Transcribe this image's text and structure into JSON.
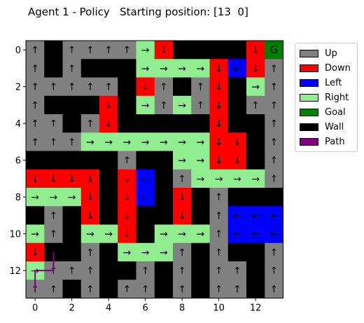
{
  "chart_data": {
    "type": "heatmap",
    "title": "Agent 1 - Policy   Starting position: [13  0]",
    "xlabel": "",
    "ylabel": "",
    "x_ticks": [
      0,
      2,
      4,
      6,
      8,
      10,
      12
    ],
    "y_ticks": [
      0,
      2,
      4,
      6,
      8,
      10,
      12
    ],
    "grid_size": [
      14,
      14
    ],
    "legend": [
      {
        "code": "U",
        "label": "Up",
        "color": "#808080"
      },
      {
        "code": "D",
        "label": "Down",
        "color": "#ff0000"
      },
      {
        "code": "L",
        "label": "Left",
        "color": "#0000ff"
      },
      {
        "code": "R",
        "label": "Right",
        "color": "#90ee90"
      },
      {
        "code": "G",
        "label": "Goal",
        "color": "#008000"
      },
      {
        "code": "W",
        "label": "Wall",
        "color": "#000000"
      },
      {
        "code": "P",
        "label": "Path",
        "color": "#800080"
      }
    ],
    "arrows": {
      "U": "↑",
      "D": "↓",
      "L": "←",
      "R": "→"
    },
    "goal_label": "G",
    "grid": [
      "UWUUUURDWWWWDG",
      "UWUWWWRRRRDLDU",
      "UUUUUWDUWUDWRU",
      "UWWWDWRURUDWUU",
      "UUWUDWWWWWDWWU",
      "UUURRRRRRRDDWU",
      "WWWWWUWWRRDDWU",
      "DDDDWDLWURRRRU",
      "RRRDWDLWDWUWWW",
      "WUWDWDWWDWULLL",
      "RUWRRDWRRRULLL",
      "DWWUWRRRUWUWWU",
      "RUUUWWUWUWUUWU",
      "UUWUWUUWUWUUWU"
    ],
    "path": [
      [
        13,
        0
      ],
      [
        12,
        0
      ],
      [
        12,
        1
      ],
      [
        11,
        1
      ]
    ]
  }
}
